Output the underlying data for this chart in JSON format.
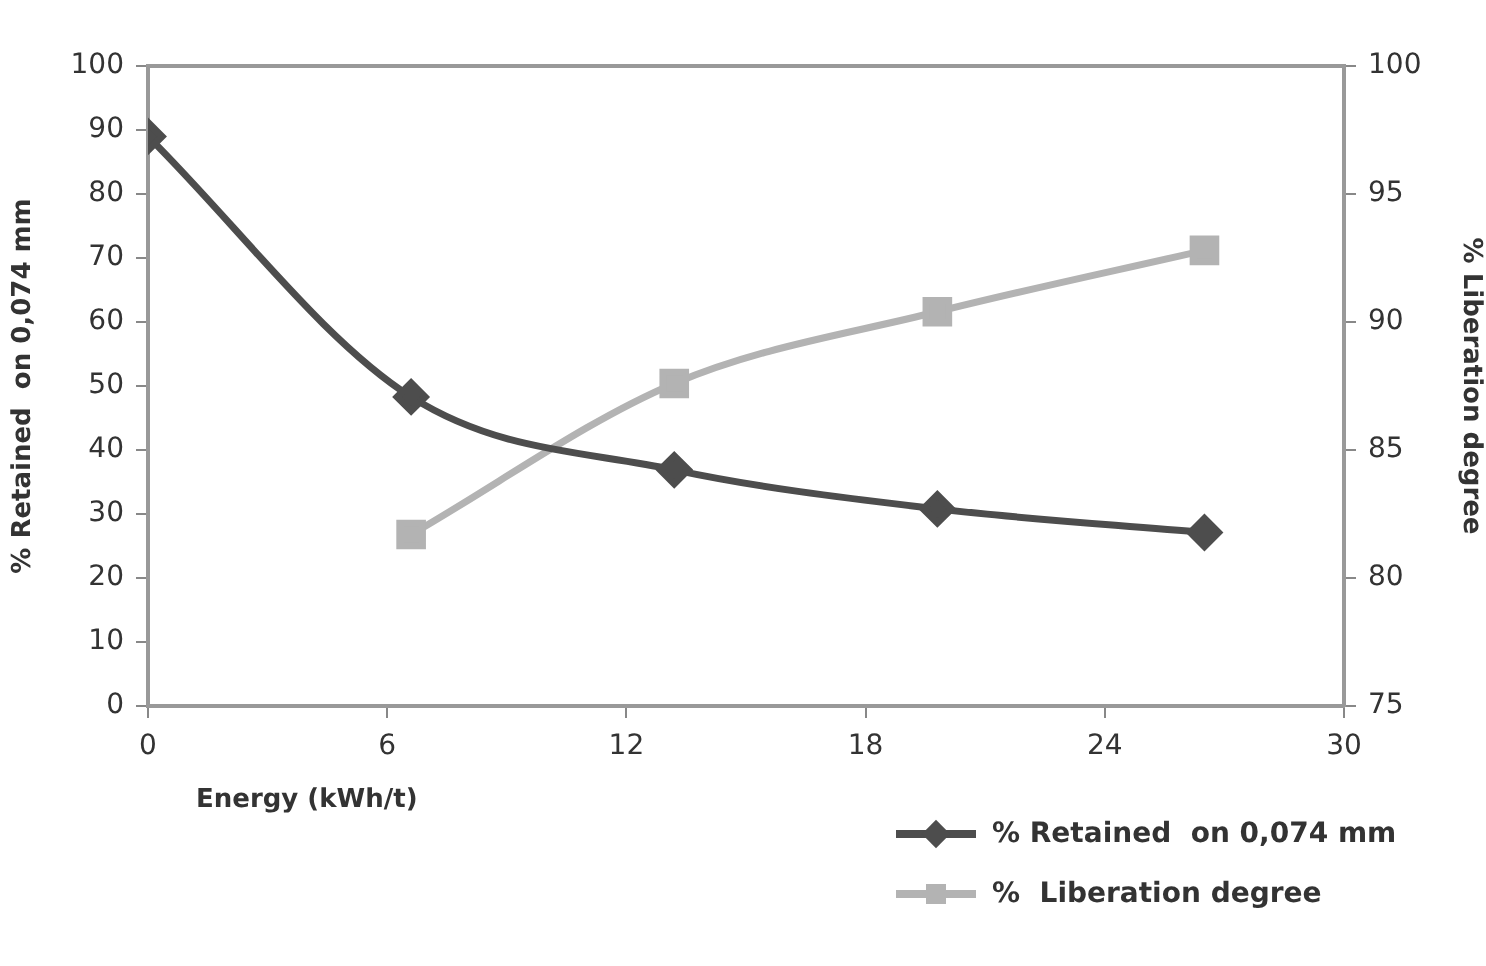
{
  "chart_data": {
    "type": "line",
    "xlabel": "Energy (kWh/t)",
    "ylabel": "% Retained  on 0,074 mm",
    "y2label": "% Liberation degree",
    "x": [
      0,
      6.6,
      13.2,
      19.8,
      26.5
    ],
    "series": [
      {
        "name": "% Retained  on 0,074 mm",
        "color": "#4d4d4d",
        "marker": "diamond",
        "values": [
          89,
          48.3,
          36.9,
          30.8,
          27.1
        ]
      },
      {
        "name": "%  Liberation degree",
        "color": "#b3b3b3",
        "marker": "square",
        "axis": "y2",
        "values": [
          null,
          81.7,
          87.6,
          90.4,
          92.8
        ]
      }
    ],
    "xlim": [
      0,
      30
    ],
    "xticks": [
      0,
      6,
      12,
      18,
      24,
      30
    ],
    "ylim": [
      0,
      100
    ],
    "yticks": [
      0,
      10,
      20,
      30,
      40,
      50,
      60,
      70,
      80,
      90,
      100
    ],
    "y2lim": [
      75,
      100
    ],
    "y2ticks": [
      75,
      80,
      85,
      90,
      95,
      100
    ],
    "grid": false,
    "legend": "bottom right"
  }
}
